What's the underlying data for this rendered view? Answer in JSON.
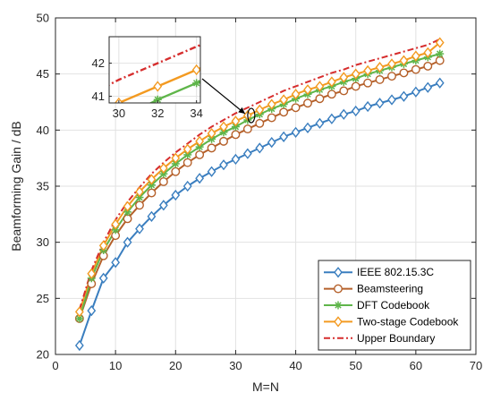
{
  "chart_data": {
    "type": "line",
    "title": "",
    "xlabel": "M=N",
    "ylabel": "Beamforming Gain / dB",
    "xlim": [
      0,
      70
    ],
    "ylim": [
      20,
      50
    ],
    "xticks": [
      0,
      10,
      20,
      30,
      40,
      50,
      60,
      70
    ],
    "yticks": [
      20,
      25,
      30,
      35,
      40,
      45,
      50
    ],
    "grid": true,
    "legend_position": "bottom-right",
    "x": [
      4,
      6,
      8,
      10,
      12,
      14,
      16,
      18,
      20,
      22,
      24,
      26,
      28,
      30,
      32,
      34,
      36,
      38,
      40,
      42,
      44,
      46,
      48,
      50,
      52,
      54,
      56,
      58,
      60,
      62,
      64
    ],
    "series": [
      {
        "name": "IEEE 802.15.3C",
        "color": "#3a7ebf",
        "marker": "diamond",
        "dash": "solid",
        "values": [
          20.8,
          23.9,
          26.8,
          28.2,
          30.0,
          31.2,
          32.3,
          33.3,
          34.2,
          35.0,
          35.7,
          36.3,
          36.9,
          37.4,
          37.9,
          38.4,
          38.9,
          39.4,
          39.8,
          40.2,
          40.6,
          41.0,
          41.4,
          41.7,
          42.1,
          42.4,
          42.7,
          43.0,
          43.4,
          43.8,
          44.2
        ]
      },
      {
        "name": "Beamsteering",
        "color": "#b5602a",
        "marker": "circle",
        "dash": "solid",
        "values": [
          23.2,
          26.3,
          28.8,
          30.6,
          32.1,
          33.3,
          34.4,
          35.4,
          36.3,
          37.1,
          37.8,
          38.4,
          39.0,
          39.6,
          40.1,
          40.6,
          41.1,
          41.6,
          42.0,
          42.4,
          42.8,
          43.2,
          43.5,
          43.9,
          44.2,
          44.5,
          44.8,
          45.1,
          45.4,
          45.7,
          46.2
        ]
      },
      {
        "name": "DFT Codebook",
        "color": "#5fb54a",
        "marker": "asterisk",
        "dash": "solid",
        "values": [
          23.2,
          26.8,
          29.3,
          31.1,
          32.7,
          34.0,
          35.1,
          36.1,
          37.0,
          37.8,
          38.5,
          39.2,
          39.8,
          40.3,
          40.9,
          41.4,
          41.9,
          42.3,
          42.8,
          43.2,
          43.6,
          43.9,
          44.3,
          44.6,
          45.0,
          45.3,
          45.6,
          45.9,
          46.2,
          46.5,
          46.8
        ]
      },
      {
        "name": "Two-stage Codebook",
        "color": "#f39a21",
        "marker": "diamond",
        "dash": "solid",
        "values": [
          23.8,
          27.2,
          29.7,
          31.6,
          33.2,
          34.5,
          35.6,
          36.6,
          37.5,
          38.3,
          39.0,
          39.7,
          40.3,
          40.8,
          41.3,
          41.8,
          42.3,
          42.7,
          43.2,
          43.6,
          43.9,
          44.3,
          44.7,
          45.0,
          45.3,
          45.6,
          45.9,
          46.2,
          46.6,
          46.9,
          47.8
        ]
      },
      {
        "name": "Upper Boundary",
        "color": "#d62d2d",
        "marker": "none",
        "dash": "dashdot",
        "values": [
          24.0,
          27.5,
          30.0,
          32.0,
          33.6,
          34.9,
          36.1,
          37.1,
          38.0,
          38.8,
          39.6,
          40.3,
          40.9,
          41.5,
          42.0,
          42.5,
          43.0,
          43.5,
          43.9,
          44.3,
          44.7,
          45.1,
          45.4,
          45.8,
          46.1,
          46.4,
          46.7,
          47.0,
          47.3,
          47.6,
          48.1
        ]
      }
    ],
    "inset": {
      "xlim": [
        29.5,
        34.2
      ],
      "ylim": [
        40.8,
        42.8
      ],
      "xticks": [
        30,
        32,
        34
      ],
      "yticks": [
        41,
        42
      ],
      "grid": true,
      "zoom_region": {
        "x": 32.6,
        "y": 41.3
      }
    }
  }
}
